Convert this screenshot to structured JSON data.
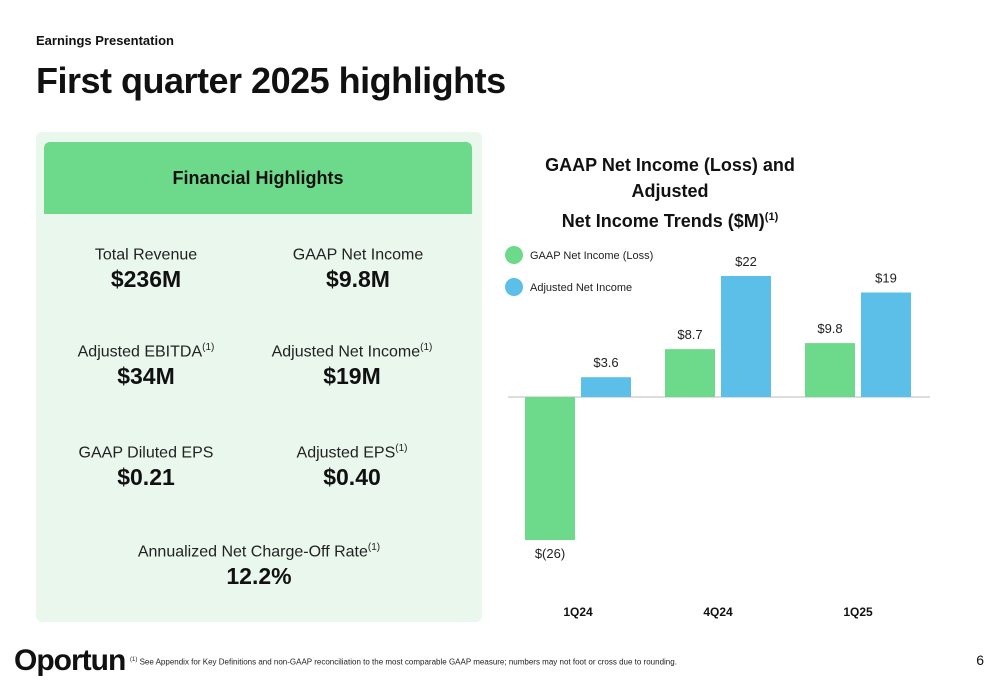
{
  "header": {
    "eyebrow": "Earnings Presentation",
    "title": "First quarter 2025 highlights"
  },
  "panel": {
    "header": "Financial Highlights",
    "metrics": [
      {
        "label": "Total Revenue",
        "sup": "",
        "value": "$236M"
      },
      {
        "label": "GAAP Net Income",
        "sup": "",
        "value": "$9.8M"
      },
      {
        "label": "Adjusted EBITDA",
        "sup": "(1)",
        "value": "$34M"
      },
      {
        "label": "Adjusted Net Income",
        "sup": "(1)",
        "value": "$19M"
      },
      {
        "label": "GAAP Diluted EPS",
        "sup": "",
        "value": "$0.21"
      },
      {
        "label": "Adjusted EPS",
        "sup": "(1)",
        "value": "$0.40"
      },
      {
        "label": "Annualized Net Charge-Off Rate",
        "sup": "(1)",
        "value": "12.2%"
      }
    ]
  },
  "chart_data": {
    "type": "bar",
    "title_line1": "GAAP Net Income (Loss) and Adjusted",
    "title_line2": "Net Income Trends ($M)",
    "title_sup": "(1)",
    "categories": [
      "1Q24",
      "4Q24",
      "1Q25"
    ],
    "series": [
      {
        "name": "GAAP Net Income (Loss)",
        "color": "#6dd98a",
        "values": [
          -26,
          8.7,
          9.8
        ],
        "labels": [
          "$(26)",
          "$8.7",
          "$9.8"
        ]
      },
      {
        "name": "Adjusted Net Income",
        "color": "#5bbfe8",
        "values": [
          3.6,
          22,
          19
        ],
        "labels": [
          "$3.6",
          "$22",
          "$19"
        ]
      }
    ],
    "legend": "top-left",
    "grid": false
  },
  "footer": {
    "logo": "Oportun",
    "footnote_sup": "(1)",
    "footnote": "See Appendix for Key Definitions and non-GAAP reconciliation to the most comparable GAAP measure; numbers may not foot or cross due to rounding.",
    "page_number": "6"
  }
}
